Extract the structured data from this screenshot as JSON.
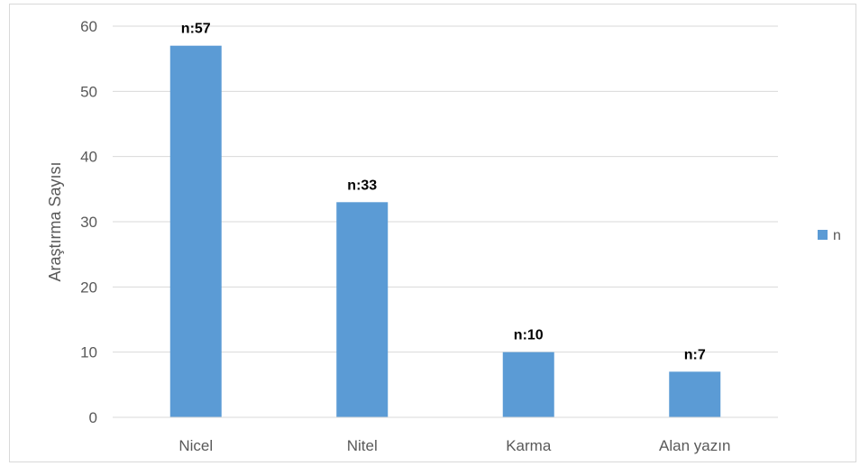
{
  "chart_data": {
    "type": "bar",
    "title": "",
    "xlabel": "",
    "ylabel": "Araştırma Sayısı",
    "categories": [
      "Nicel",
      "Nitel",
      "Karma",
      "Alan yazın"
    ],
    "series": [
      {
        "name": "n",
        "values": [
          57,
          33,
          10,
          7
        ],
        "data_labels": [
          "n:57",
          "n:33",
          "n:10",
          "n:7"
        ],
        "color": "#5b9bd5"
      }
    ],
    "ylim": [
      0,
      60
    ],
    "yticks": [
      0,
      10,
      20,
      30,
      40,
      50,
      60
    ],
    "grid": true,
    "gridline_color": "#d9d9d9",
    "legend_position": "right"
  }
}
